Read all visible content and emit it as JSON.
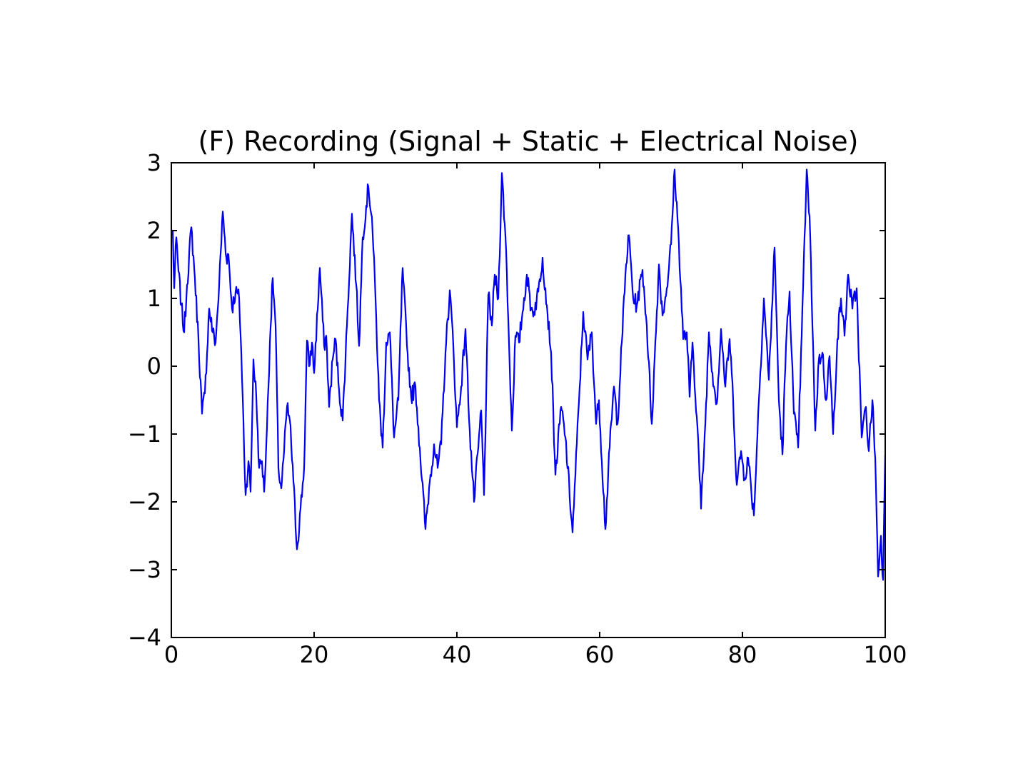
{
  "figure": {
    "background": "#ffffff",
    "frame_color": "#000000",
    "text_color": "#000000"
  },
  "chart_data": {
    "type": "line",
    "title": "(F) Recording (Signal + Static + Electrical Noise)",
    "xlabel": "",
    "ylabel": "",
    "xlim": [
      0,
      100
    ],
    "ylim": [
      -4,
      3
    ],
    "xticks": [
      0,
      20,
      40,
      60,
      80,
      100
    ],
    "yticks": [
      3,
      2,
      1,
      0,
      -1,
      -2,
      -3,
      -4
    ],
    "grid": false,
    "legend": null,
    "line_color": "#0000ee",
    "line_width": 2.2,
    "noise": {
      "amplitude": 0.13,
      "samples_per_unit": 10,
      "seed": 7
    },
    "series": [
      {
        "name": "recording",
        "x": [
          0.0,
          0.2,
          0.4,
          0.7,
          1.0,
          1.4,
          1.8,
          2.2,
          2.8,
          3.3,
          3.8,
          4.3,
          4.7,
          5.3,
          5.8,
          6.2,
          6.7,
          7.2,
          7.7,
          8.0,
          8.5,
          9.0,
          9.5,
          9.8,
          10.4,
          10.8,
          11.1,
          11.5,
          11.9,
          12.3,
          12.7,
          13.0,
          13.4,
          13.8,
          14.2,
          14.6,
          15.0,
          15.4,
          15.8,
          16.2,
          16.6,
          17.1,
          17.6,
          18.1,
          18.6,
          19.0,
          19.3,
          19.7,
          20.0,
          20.8,
          21.4,
          21.7,
          22.1,
          22.6,
          23.0,
          23.5,
          24.0,
          24.7,
          25.3,
          25.9,
          26.3,
          26.8,
          27.6,
          28.1,
          28.6,
          29.1,
          29.6,
          30.1,
          30.6,
          31.2,
          31.8,
          32.4,
          33.0,
          33.6,
          34.2,
          34.8,
          35.6,
          36.2,
          36.8,
          37.3,
          37.8,
          38.4,
          39.0,
          39.5,
          40.0,
          40.6,
          41.2,
          41.8,
          42.4,
          43.0,
          43.4,
          43.8,
          44.4,
          44.9,
          45.3,
          45.8,
          46.3,
          46.9,
          47.3,
          47.7,
          48.2,
          48.7,
          49.2,
          49.8,
          50.4,
          50.8,
          51.4,
          52.0,
          52.6,
          53.2,
          53.8,
          54.6,
          55.2,
          56.2,
          56.6,
          57.2,
          57.7,
          58.3,
          58.9,
          59.5,
          59.9,
          60.8,
          61.4,
          62.0,
          62.5,
          63.1,
          63.7,
          64.1,
          64.7,
          65.2,
          66.0,
          66.6,
          67.3,
          68.3,
          68.8,
          69.4,
          70.0,
          70.5,
          71.1,
          71.7,
          72.2,
          72.6,
          73.0,
          73.7,
          74.2,
          74.8,
          75.3,
          75.8,
          76.4,
          77.0,
          77.6,
          78.2,
          78.7,
          79.2,
          79.8,
          80.3,
          80.8,
          81.6,
          82.3,
          83.0,
          83.7,
          84.5,
          85.1,
          85.6,
          86.1,
          86.6,
          87.2,
          87.8,
          88.3,
          89.0,
          89.5,
          90.2,
          90.7,
          91.2,
          91.7,
          92.2,
          92.7,
          93.3,
          93.8,
          94.3,
          94.8,
          95.4,
          96.0,
          96.7,
          97.3,
          97.7,
          98.2,
          98.6,
          99.0,
          99.4,
          99.7,
          100.0
        ],
        "y": [
          1.95,
          2.0,
          1.15,
          1.9,
          1.4,
          0.9,
          0.5,
          1.2,
          2.05,
          1.3,
          0.4,
          -0.7,
          -0.4,
          0.85,
          0.5,
          0.35,
          1.2,
          2.28,
          1.6,
          1.65,
          0.85,
          1.1,
          1.0,
          0.2,
          -1.9,
          -1.4,
          -1.85,
          0.1,
          -0.45,
          -1.5,
          -1.4,
          -1.85,
          -0.9,
          0.35,
          1.3,
          0.6,
          -1.5,
          -1.8,
          -1.25,
          -0.6,
          -0.8,
          -1.7,
          -2.7,
          -2.1,
          -1.5,
          0.38,
          0.0,
          0.35,
          -0.1,
          1.45,
          0.3,
          0.45,
          -0.6,
          0.1,
          0.4,
          -0.35,
          -0.8,
          0.85,
          2.25,
          1.2,
          0.3,
          1.9,
          2.65,
          2.2,
          1.0,
          -0.5,
          -1.2,
          0.35,
          0.5,
          -1.05,
          -0.5,
          1.45,
          0.3,
          -0.45,
          -0.3,
          -1.2,
          -2.4,
          -1.7,
          -1.15,
          -1.5,
          -1.15,
          0.2,
          1.12,
          0.3,
          -0.9,
          -0.3,
          0.55,
          -0.95,
          -2.0,
          -1.2,
          -0.65,
          -1.9,
          1.05,
          0.6,
          1.35,
          1.0,
          2.85,
          1.7,
          0.35,
          -0.95,
          0.45,
          0.35,
          0.8,
          1.35,
          0.85,
          0.8,
          1.1,
          1.6,
          0.9,
          0.2,
          -1.6,
          -0.6,
          -1.05,
          -2.45,
          -1.6,
          -0.3,
          0.8,
          0.1,
          0.5,
          -0.85,
          -0.5,
          -2.4,
          -1.2,
          -0.3,
          -0.85,
          0.35,
          1.5,
          1.93,
          1.0,
          0.9,
          1.42,
          0.6,
          -0.85,
          1.5,
          0.75,
          1.15,
          1.8,
          2.9,
          1.8,
          0.4,
          0.5,
          -0.45,
          0.35,
          -0.9,
          -2.1,
          -0.85,
          0.5,
          -0.1,
          -0.55,
          0.55,
          -0.3,
          0.4,
          -0.5,
          -1.75,
          -1.25,
          -1.65,
          -1.35,
          -2.2,
          -0.5,
          1.0,
          -0.2,
          1.75,
          -0.5,
          -1.3,
          0.3,
          1.1,
          -0.7,
          -1.2,
          0.45,
          2.9,
          1.9,
          -0.95,
          0.1,
          0.2,
          -0.5,
          0.15,
          -1.0,
          0.4,
          1.0,
          0.45,
          1.35,
          0.85,
          1.15,
          -1.05,
          -0.6,
          -1.25,
          -0.5,
          -1.35,
          -3.1,
          -2.5,
          -3.15,
          -1.3
        ]
      }
    ]
  }
}
